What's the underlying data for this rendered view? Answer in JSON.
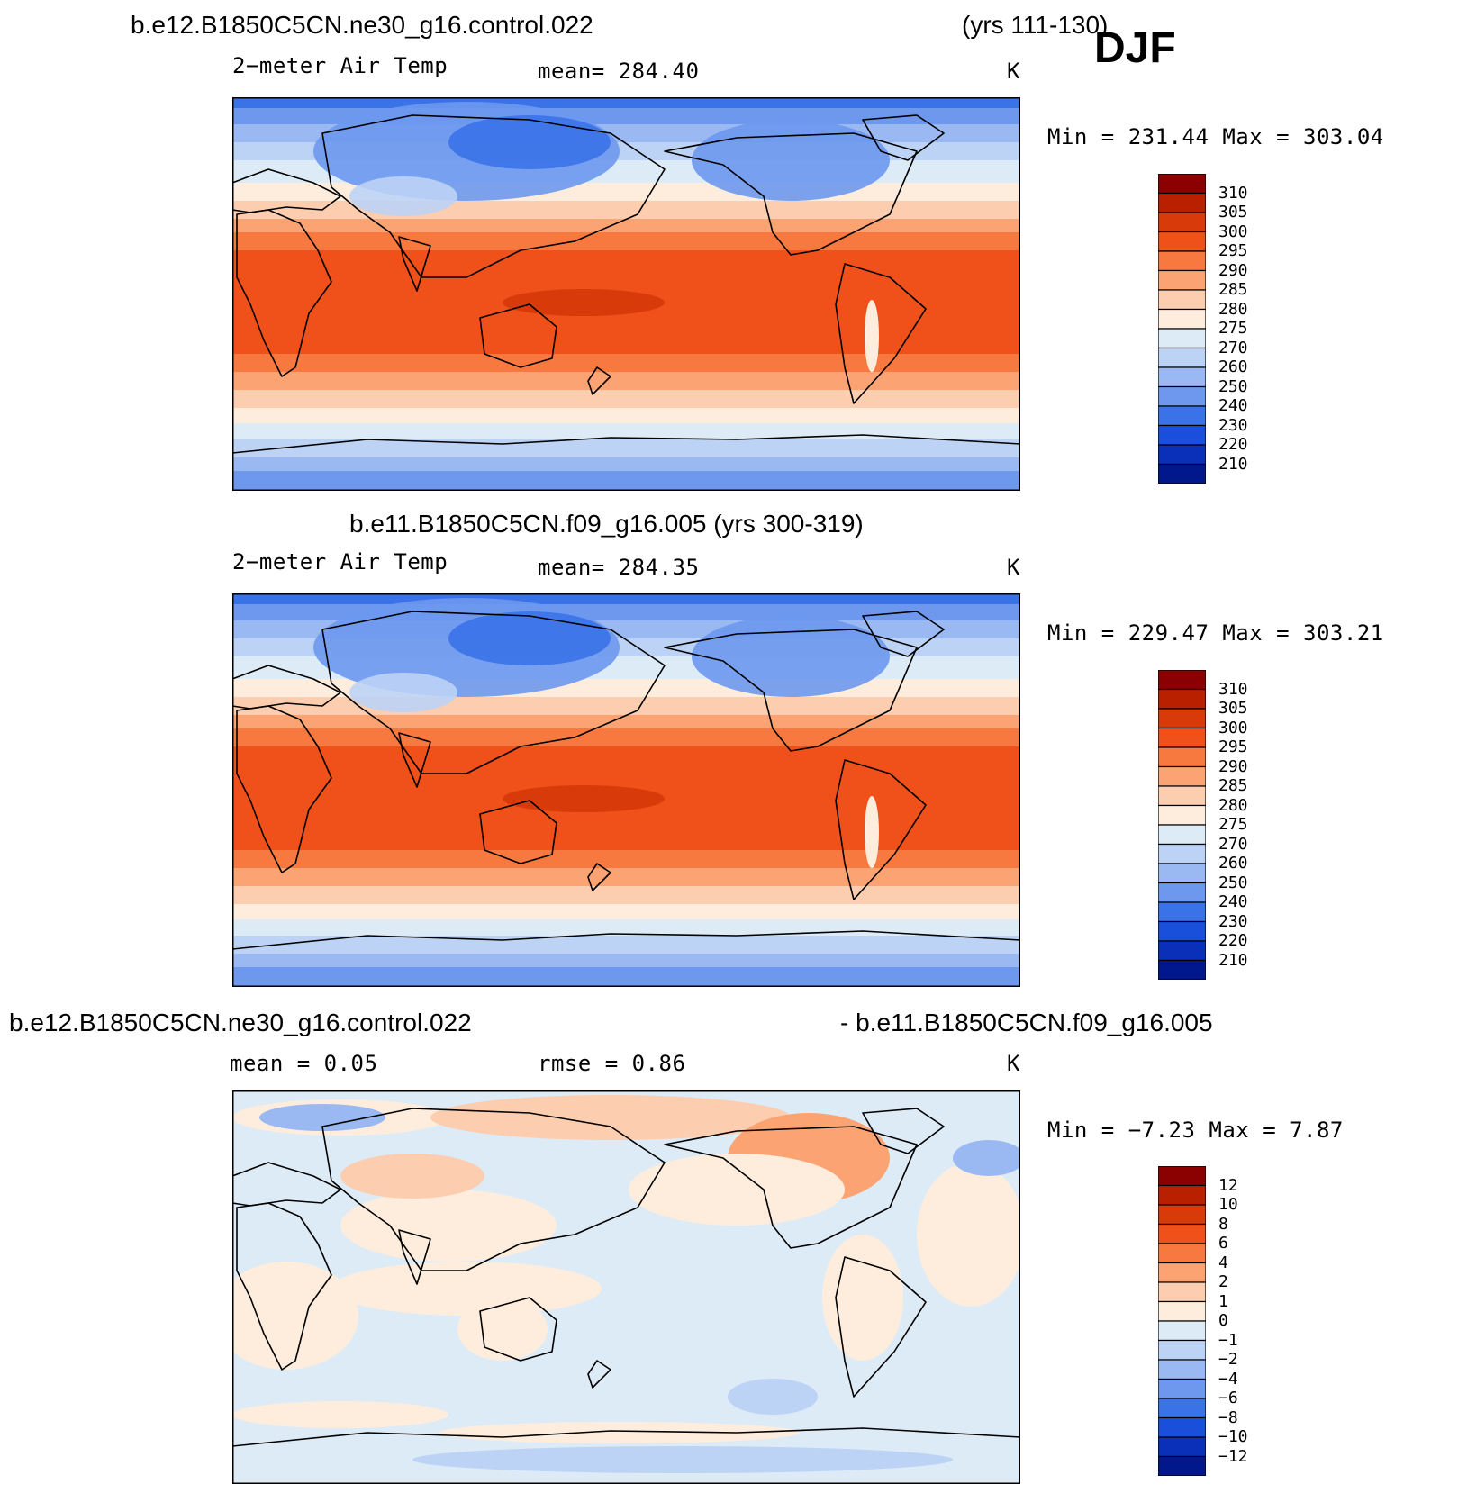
{
  "header": {
    "case1": "b.e12.B1850C5CN.ne30_g16.control.022",
    "case1_years": "(yrs 111-130)",
    "season": "DJF"
  },
  "panels": [
    {
      "id": "p1",
      "title": "",
      "variable": "2−meter Air Temp",
      "stat": "mean=  284.40",
      "units": "K",
      "minmax": "Min  =  231.44  Max  =  303.04",
      "type": "abs"
    },
    {
      "id": "p2",
      "title": "b.e11.B1850C5CN.f09_g16.005 (yrs 300-319)",
      "variable": "2−meter Air Temp",
      "stat": "mean=  284.35",
      "units": "K",
      "minmax": "Min  =  229.47  Max  =  303.21",
      "type": "abs"
    },
    {
      "id": "p3",
      "title_left": "b.e12.B1850C5CN.ne30_g16.control.022",
      "title_right": "- b.e11.B1850C5CN.f09_g16.005",
      "stat_mean": "mean  =    0.05",
      "stat_rmse": "rmse  =    0.86",
      "units": "K",
      "minmax": "Min  =   −7.23  Max  =    7.87",
      "type": "diff"
    }
  ],
  "colorbars": {
    "abs": {
      "labels": [
        "310",
        "305",
        "300",
        "295",
        "290",
        "285",
        "280",
        "275",
        "270",
        "260",
        "250",
        "240",
        "230",
        "220",
        "210"
      ],
      "colors": [
        "#8b0000",
        "#b82000",
        "#d93a0a",
        "#f0501a",
        "#f8793f",
        "#fca374",
        "#fdcdb0",
        "#feeddd",
        "#ddebf7",
        "#bcd3f5",
        "#9ab8f2",
        "#6d98ee",
        "#3a72e8",
        "#1a4fdc",
        "#0a2fb8",
        "#00188c"
      ]
    },
    "diff": {
      "labels": [
        "12",
        "10",
        "8",
        "6",
        "4",
        "2",
        "1",
        "0",
        "−1",
        "−2",
        "−4",
        "−6",
        "−8",
        "−10",
        "−12"
      ],
      "colors": [
        "#8b0000",
        "#b82000",
        "#d93a0a",
        "#f0501a",
        "#f8793f",
        "#fca374",
        "#fdcdb0",
        "#feeddd",
        "#ddebf7",
        "#bcd3f5",
        "#9ab8f2",
        "#6d98ee",
        "#3a72e8",
        "#1a4fdc",
        "#0a2fb8",
        "#00188c"
      ]
    }
  }
}
